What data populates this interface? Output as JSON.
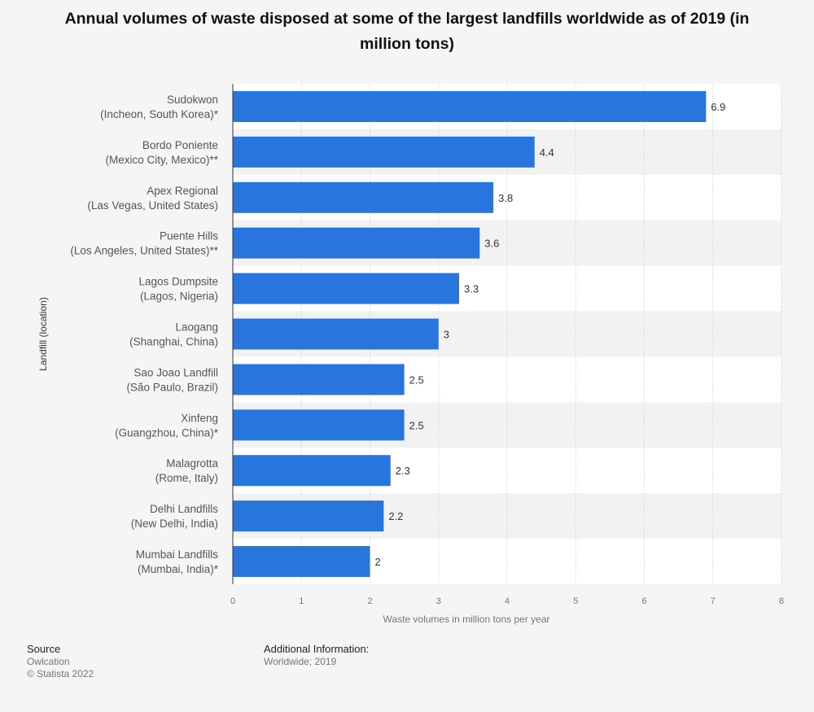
{
  "chart_data": {
    "type": "bar",
    "orientation": "horizontal",
    "title": "Annual volumes of waste disposed at some of the largest landfills worldwide as of 2019 (in million tons)",
    "xlabel": "Waste volumes in million tons per year",
    "ylabel": "Landfill (location)",
    "xlim": [
      0,
      8
    ],
    "xticks": [
      "0",
      "1",
      "2",
      "3",
      "4",
      "5",
      "6",
      "7",
      "8"
    ],
    "grid": true,
    "bar_color": "#2876dd",
    "categories": [
      {
        "name": "Sudokwon",
        "location": "(Incheon, South Korea)*"
      },
      {
        "name": "Bordo Poniente",
        "location": "(Mexico City, Mexico)**"
      },
      {
        "name": "Apex Regional",
        "location": "(Las Vegas, United States)"
      },
      {
        "name": "Puente Hills",
        "location": "(Los Angeles, United States)**"
      },
      {
        "name": "Lagos Dumpsite",
        "location": "(Lagos, Nigeria)"
      },
      {
        "name": "Laogang",
        "location": "(Shanghai, China)"
      },
      {
        "name": "Sao Joao Landfill",
        "location": "(São Paulo, Brazil)"
      },
      {
        "name": "Xinfeng",
        "location": "(Guangzhou, China)*"
      },
      {
        "name": "Malagrotta",
        "location": "(Rome, Italy)"
      },
      {
        "name": "Delhi Landfills",
        "location": "(New Delhi, India)"
      },
      {
        "name": "Mumbai Landfills",
        "location": "(Mumbai, India)*"
      }
    ],
    "values": [
      6.9,
      4.4,
      3.8,
      3.6,
      3.3,
      3,
      2.5,
      2.5,
      2.3,
      2.2,
      2
    ],
    "value_labels": [
      "6.9",
      "4.4",
      "3.8",
      "3.6",
      "3.3",
      "3",
      "2.5",
      "2.5",
      "2.3",
      "2.2",
      "2"
    ]
  },
  "footer": {
    "source_heading": "Source",
    "source_lines": [
      "Owlcation",
      "© Statista 2022"
    ],
    "info_heading": "Additional Information:",
    "info_lines": [
      "Worldwide; 2019"
    ]
  }
}
